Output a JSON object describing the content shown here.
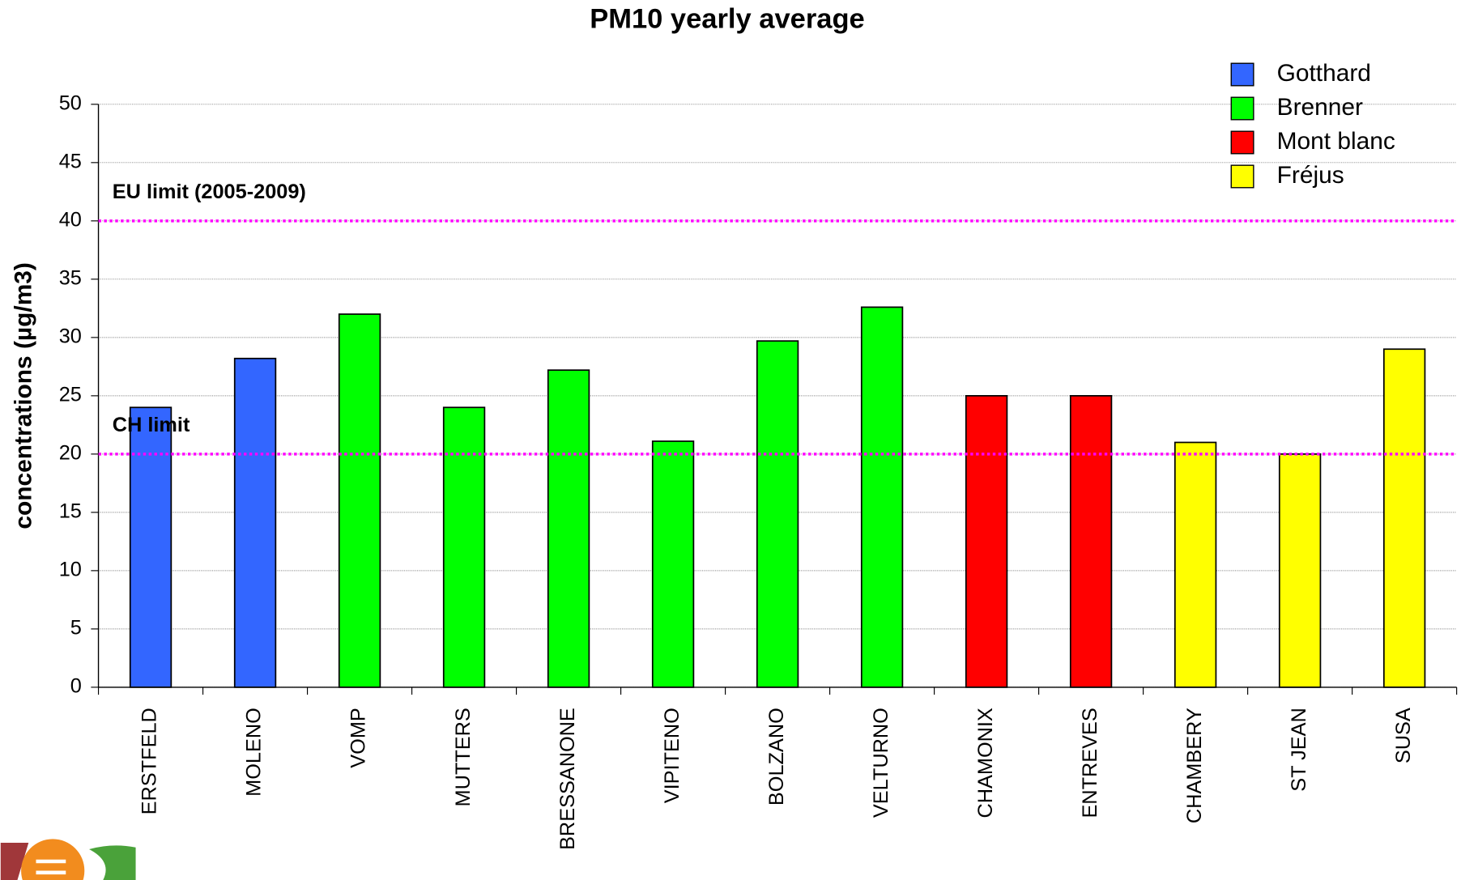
{
  "chart_data": {
    "type": "bar",
    "title": "PM10 yearly average",
    "y_label": "concentrations (µg/m3)",
    "categories": [
      "ERSTFELD",
      "MOLENO",
      "VOMP",
      "MUTTERS",
      "BRESSANONE",
      "VIPITENO",
      "BOLZANO",
      "VELTURNO",
      "CHAMONIX",
      "ENTREVES",
      "CHAMBERY",
      "ST JEAN",
      "SUSA"
    ],
    "series": [
      {
        "name": "Gotthard",
        "color": "#3366ff",
        "values": [
          24,
          28.2,
          null,
          null,
          null,
          null,
          null,
          null,
          null,
          null,
          null,
          null,
          null
        ]
      },
      {
        "name": "Brenner",
        "color": "#00ff00",
        "values": [
          null,
          null,
          32,
          24,
          27.2,
          21.1,
          29.7,
          32.6,
          null,
          null,
          null,
          null,
          null
        ]
      },
      {
        "name": "Mont blanc",
        "color": "#ff0000",
        "values": [
          null,
          null,
          null,
          null,
          null,
          null,
          null,
          null,
          25,
          25,
          null,
          null,
          null
        ]
      },
      {
        "name": "Fréjus",
        "color": "#ffff00",
        "values": [
          null,
          null,
          null,
          null,
          null,
          null,
          null,
          null,
          null,
          null,
          21,
          20,
          29
        ]
      }
    ],
    "reference_lines": [
      {
        "label": "EU limit (2005-2009)",
        "value": 40,
        "color": "#ff00ff"
      },
      {
        "label": "CH limit",
        "value": 20,
        "color": "#ff00ff"
      }
    ],
    "ylim": [
      0,
      50
    ],
    "yticks": [
      0,
      5,
      10,
      15,
      20,
      25,
      30,
      35,
      40,
      45,
      50
    ],
    "grid": true,
    "legend": "top-right"
  }
}
